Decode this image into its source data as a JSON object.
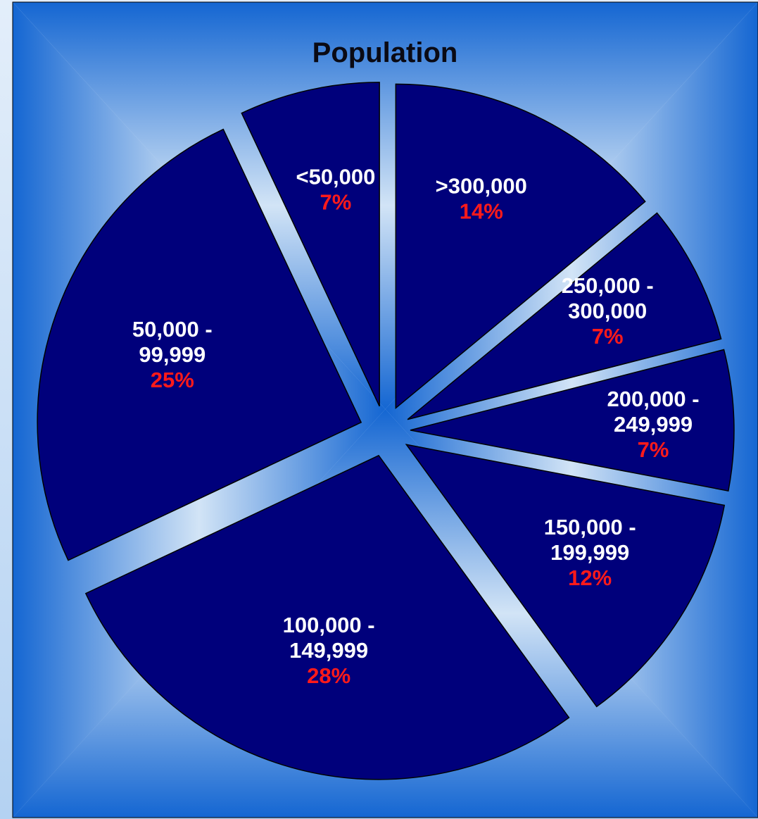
{
  "chart_data": {
    "type": "pie",
    "title": "Population",
    "slices": [
      {
        "label": [
          ">300,000"
        ],
        "value": 14,
        "value_label": "14%"
      },
      {
        "label": [
          "250,000 -",
          "300,000"
        ],
        "value": 7,
        "value_label": "7%"
      },
      {
        "label": [
          "200,000 -",
          "249,999"
        ],
        "value": 7,
        "value_label": "7%"
      },
      {
        "label": [
          "150,000 -",
          "199,999"
        ],
        "value": 12,
        "value_label": "12%"
      },
      {
        "label": [
          "100,000 -",
          "149,999"
        ],
        "value": 28,
        "value_label": "28%"
      },
      {
        "label": [
          "50,000 -",
          "99,999"
        ],
        "value": 25,
        "value_label": "25%"
      },
      {
        "label": [
          "<50,000"
        ],
        "value": 7,
        "value_label": "7%"
      }
    ],
    "start_angle": "12 o'clock, clockwise",
    "exploded": true,
    "legend": "none",
    "colors": {
      "slice_fill": "#00007b",
      "slice_stroke": "#000000",
      "category_text": "#ffffff",
      "percent_text": "#ff1a1a",
      "title_text": "#0a0a14",
      "background_edge": "#1466d2",
      "background_center": "#d2e4f6"
    }
  }
}
